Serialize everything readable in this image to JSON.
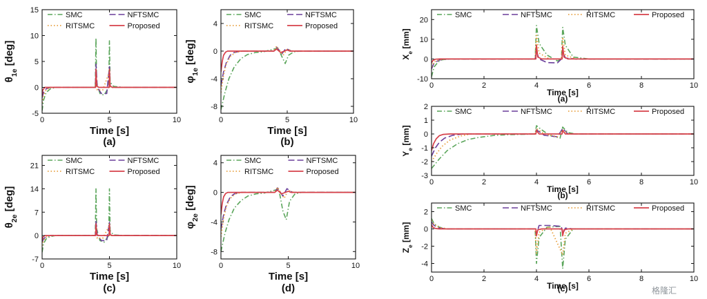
{
  "colors": {
    "SMC": "#5aa55a",
    "NFTSMC": "#6a3d9a",
    "RITSMC": "#e8a040",
    "Proposed": "#d6404a"
  },
  "watermark": "格隆汇",
  "chart_data": [
    {
      "id": "theta1",
      "type": "line",
      "ylabel": "θ1e [deg]",
      "xlabel": "Time [s]",
      "caption": "(a)",
      "xlim": [
        0,
        10
      ],
      "ylim": [
        -5,
        15
      ],
      "xticks": [
        0,
        5,
        10
      ],
      "yticks": [
        -5,
        0,
        5,
        10,
        15
      ],
      "legend": [
        "SMC",
        "NFTSMC",
        "RITSMC",
        "Proposed"
      ],
      "series": [
        {
          "name": "SMC",
          "x": [
            0,
            0.1,
            0.3,
            0.6,
            1.0,
            3.95,
            4.0,
            4.05,
            4.3,
            4.6,
            4.95,
            5.0,
            5.05,
            5.3,
            6,
            10
          ],
          "y": [
            -4.5,
            -2.5,
            -1,
            -0.3,
            0,
            0,
            9.5,
            1,
            -1.2,
            -1.5,
            0,
            9,
            1,
            0.2,
            0,
            0
          ]
        },
        {
          "name": "NFTSMC",
          "x": [
            0,
            0.1,
            0.3,
            0.6,
            3.95,
            4.0,
            4.1,
            4.4,
            4.8,
            5.0,
            5.05,
            5.2,
            5.5,
            10
          ],
          "y": [
            -2,
            -1,
            -0.3,
            0,
            0,
            4.5,
            0,
            -1.2,
            -1.2,
            4,
            0.3,
            0,
            0,
            0
          ]
        },
        {
          "name": "RITSMC",
          "x": [
            0,
            0.1,
            0.3,
            0.6,
            3.95,
            4.0,
            4.1,
            4.5,
            5.0,
            5.05,
            5.3,
            10
          ],
          "y": [
            -3,
            -1.5,
            -0.5,
            0,
            0,
            3,
            -0.5,
            -0.5,
            3,
            0,
            0,
            0
          ]
        },
        {
          "name": "Proposed",
          "x": [
            0,
            0.05,
            0.2,
            0.4,
            3.98,
            4.0,
            4.05,
            4.2,
            4.98,
            5.0,
            5.05,
            5.2,
            10
          ],
          "y": [
            -1.5,
            -0.5,
            0,
            0,
            0,
            3.5,
            0.3,
            0,
            0,
            3.5,
            0.3,
            0,
            0
          ]
        }
      ]
    },
    {
      "id": "phi1",
      "type": "line",
      "ylabel": "φ1e [deg]",
      "xlabel": "Time [s]",
      "caption": "(b)",
      "xlim": [
        0,
        10
      ],
      "ylim": [
        -9,
        6
      ],
      "xticks": [
        0,
        5,
        10
      ],
      "yticks": [
        -8,
        -4,
        0,
        4
      ],
      "legend": [
        "SMC",
        "NFTSMC",
        "RITSMC",
        "Proposed"
      ],
      "series": [
        {
          "name": "SMC",
          "x": [
            0,
            0.3,
            0.6,
            1.0,
            1.5,
            2.0,
            2.6,
            3.2,
            4.0,
            4.3,
            4.7,
            4.85,
            5.1,
            5.5,
            6,
            10
          ],
          "y": [
            -8.5,
            -6,
            -4,
            -2.3,
            -1.1,
            -0.5,
            -0.2,
            -0.1,
            0.3,
            0.4,
            -1.2,
            -1.8,
            -0.6,
            -0.1,
            0,
            0
          ]
        },
        {
          "name": "NFTSMC",
          "x": [
            0,
            0.2,
            0.4,
            0.7,
            1.0,
            1.5,
            4.0,
            4.2,
            4.6,
            4.9,
            5.3,
            6,
            10
          ],
          "y": [
            -5,
            -3,
            -1.7,
            -0.6,
            -0.2,
            0,
            0,
            0.6,
            -0.4,
            0.4,
            0,
            0,
            0
          ]
        },
        {
          "name": "RITSMC",
          "x": [
            0,
            0.2,
            0.4,
            0.7,
            1.1,
            1.6,
            4.0,
            4.2,
            4.7,
            5.0,
            5.4,
            10
          ],
          "y": [
            -6,
            -3.5,
            -1.9,
            -0.8,
            -0.2,
            0,
            0,
            0.7,
            -0.6,
            0.3,
            0,
            0
          ]
        },
        {
          "name": "Proposed",
          "x": [
            0,
            0.1,
            0.2,
            0.35,
            0.5,
            0.7,
            4.0,
            4.2,
            4.5,
            5.0,
            5.2,
            10
          ],
          "y": [
            -3,
            -1.5,
            -0.6,
            -0.15,
            0,
            0,
            0,
            0.3,
            -0.2,
            0.15,
            0,
            0
          ]
        }
      ]
    },
    {
      "id": "xe",
      "type": "line",
      "ylabel": "Xe [mm]",
      "xlabel": "Time [s]",
      "caption": "(a)",
      "xlim": [
        0,
        10
      ],
      "ylim": [
        -10,
        25
      ],
      "xticks": [
        0,
        2,
        4,
        6,
        8,
        10
      ],
      "yticks": [
        -10,
        0,
        10,
        20
      ],
      "legend": [
        "SMC",
        "NFTSMC",
        "RITSMC",
        "Proposed"
      ],
      "series": [
        {
          "name": "SMC",
          "x": [
            0,
            0.1,
            0.25,
            0.4,
            0.7,
            3.95,
            4.0,
            4.1,
            4.4,
            4.8,
            4.95,
            5.0,
            5.1,
            5.4,
            6,
            10
          ],
          "y": [
            -9,
            -4,
            -1.5,
            -0.4,
            0,
            0,
            17,
            8,
            2,
            -1,
            0,
            16,
            7,
            1,
            0,
            0
          ]
        },
        {
          "name": "NFTSMC",
          "x": [
            0,
            0.1,
            0.3,
            0.6,
            3.95,
            4.0,
            4.1,
            4.4,
            4.8,
            4.95,
            5.0,
            5.1,
            5.5,
            10
          ],
          "y": [
            -5,
            -2,
            -0.5,
            0,
            0,
            4,
            0,
            -1.8,
            -2,
            0,
            4,
            0.5,
            0,
            0
          ]
        },
        {
          "name": "RITSMC",
          "x": [
            0,
            0.1,
            0.3,
            0.6,
            3.95,
            4.0,
            4.1,
            4.5,
            4.95,
            5.0,
            5.1,
            5.5,
            10
          ],
          "y": [
            -4,
            -1.5,
            -0.3,
            0,
            0,
            12,
            3,
            0,
            0,
            11,
            2,
            0,
            0
          ]
        },
        {
          "name": "Proposed",
          "x": [
            0,
            0.05,
            0.15,
            0.3,
            3.98,
            4.0,
            4.05,
            4.2,
            4.98,
            5.0,
            5.05,
            5.2,
            10
          ],
          "y": [
            -2,
            -0.8,
            -0.1,
            0,
            0,
            7,
            1,
            0,
            0,
            6.5,
            1,
            0,
            0
          ]
        }
      ]
    },
    {
      "id": "theta2",
      "type": "line",
      "ylabel": "θ2e [deg]",
      "xlabel": "Time [s]",
      "caption": "(c)",
      "xlim": [
        0,
        10
      ],
      "ylim": [
        -7,
        24
      ],
      "xticks": [
        0,
        5,
        10
      ],
      "yticks": [
        -7,
        0,
        7,
        14,
        21
      ],
      "legend": [
        "SMC",
        "NFTSMC",
        "RITSMC",
        "Proposed"
      ],
      "series": [
        {
          "name": "SMC",
          "x": [
            0,
            0.1,
            0.3,
            0.6,
            1.0,
            3.95,
            4.0,
            4.05,
            4.3,
            4.6,
            4.95,
            5.0,
            5.05,
            5.3,
            6,
            10
          ],
          "y": [
            -5,
            -2.5,
            -1,
            -0.3,
            0,
            0,
            14,
            2,
            -1.5,
            -2,
            0,
            14,
            1.5,
            0.2,
            0,
            0
          ]
        },
        {
          "name": "NFTSMC",
          "x": [
            0,
            0.1,
            0.3,
            0.6,
            3.95,
            4.0,
            4.1,
            4.4,
            4.8,
            5.0,
            5.05,
            5.2,
            5.5,
            10
          ],
          "y": [
            -2,
            -1,
            -0.3,
            0,
            0,
            4.5,
            0,
            -1.5,
            -1.5,
            4,
            0.3,
            0,
            0,
            0
          ]
        },
        {
          "name": "RITSMC",
          "x": [
            0,
            0.1,
            0.3,
            0.6,
            3.95,
            4.0,
            4.1,
            4.5,
            5.0,
            5.05,
            5.3,
            10
          ],
          "y": [
            -3,
            -1.5,
            -0.5,
            0,
            0,
            3,
            -0.8,
            -0.8,
            3,
            0,
            0,
            0
          ]
        },
        {
          "name": "Proposed",
          "x": [
            0,
            0.05,
            0.2,
            0.4,
            3.98,
            4.0,
            4.05,
            4.2,
            4.98,
            5.0,
            5.05,
            5.2,
            10
          ],
          "y": [
            -1.5,
            -0.5,
            0,
            0,
            0,
            3.5,
            0.3,
            0,
            0,
            3.5,
            0.3,
            0,
            0
          ]
        }
      ]
    },
    {
      "id": "phi2",
      "type": "line",
      "ylabel": "φ2e [deg]",
      "xlabel": "Time [s]",
      "caption": "(d)",
      "xlim": [
        0,
        10
      ],
      "ylim": [
        -9,
        5
      ],
      "xticks": [
        0,
        5,
        10
      ],
      "yticks": [
        -8,
        -4,
        0,
        4
      ],
      "legend": [
        "SMC",
        "NFTSMC",
        "RITSMC",
        "Proposed"
      ],
      "series": [
        {
          "name": "SMC",
          "x": [
            0,
            0.3,
            0.6,
            1.0,
            1.5,
            2.0,
            2.6,
            3.2,
            4.0,
            4.3,
            4.6,
            4.85,
            5.1,
            5.5,
            6,
            10
          ],
          "y": [
            -8,
            -5.5,
            -3.7,
            -2.1,
            -1.1,
            -0.5,
            -0.2,
            -0.1,
            0.3,
            0.4,
            -2.5,
            -3.7,
            -1.2,
            -0.2,
            0,
            0
          ]
        },
        {
          "name": "NFTSMC",
          "x": [
            0,
            0.2,
            0.4,
            0.7,
            1.0,
            1.5,
            4.0,
            4.2,
            4.6,
            4.9,
            5.3,
            6,
            10
          ],
          "y": [
            -5,
            -3,
            -1.7,
            -0.6,
            -0.2,
            0,
            0,
            0.6,
            -0.5,
            0.5,
            0,
            0,
            0
          ]
        },
        {
          "name": "RITSMC",
          "x": [
            0,
            0.2,
            0.4,
            0.7,
            1.1,
            1.6,
            4.0,
            4.2,
            4.7,
            5.0,
            5.4,
            10
          ],
          "y": [
            -6,
            -3.5,
            -1.9,
            -0.8,
            -0.2,
            0,
            0,
            0.7,
            -0.8,
            0.3,
            0,
            0
          ]
        },
        {
          "name": "Proposed",
          "x": [
            0,
            0.1,
            0.2,
            0.35,
            0.5,
            0.7,
            4.0,
            4.2,
            4.5,
            5.0,
            5.2,
            10
          ],
          "y": [
            -3,
            -1.5,
            -0.6,
            -0.15,
            0,
            0,
            0,
            0.3,
            -0.2,
            0.15,
            0,
            0
          ]
        }
      ]
    },
    {
      "id": "ye",
      "type": "line",
      "ylabel": "Ye [mm]",
      "xlabel": "Time [s]",
      "caption": "(b)",
      "xlim": [
        0,
        10
      ],
      "ylim": [
        -3,
        2
      ],
      "xticks": [
        0,
        2,
        4,
        6,
        8,
        10
      ],
      "yticks": [
        -3,
        -2,
        -1,
        0,
        1,
        2
      ],
      "legend": [
        "SMC",
        "NFTSMC",
        "RITSMC",
        "Proposed"
      ],
      "series": [
        {
          "name": "SMC",
          "x": [
            0,
            0.3,
            0.6,
            1.0,
            1.4,
            1.8,
            2.4,
            3.0,
            3.95,
            4.0,
            4.2,
            4.5,
            4.9,
            5.0,
            5.2,
            5.5,
            6,
            10
          ],
          "y": [
            -2.5,
            -1.8,
            -1.2,
            -0.7,
            -0.4,
            -0.25,
            -0.1,
            -0.05,
            0,
            0.6,
            0.3,
            -0.1,
            -0.3,
            0.5,
            0.1,
            0,
            0,
            0
          ]
        },
        {
          "name": "NFTSMC",
          "x": [
            0,
            0.15,
            0.3,
            0.5,
            0.8,
            1.2,
            3.95,
            4.0,
            4.3,
            4.8,
            5.0,
            5.2,
            10
          ],
          "y": [
            -1.6,
            -1,
            -0.6,
            -0.3,
            -0.1,
            0,
            0,
            0.3,
            -0.1,
            -0.2,
            0.4,
            0,
            0
          ]
        },
        {
          "name": "RITSMC",
          "x": [
            0,
            0.2,
            0.4,
            0.7,
            1.1,
            1.5,
            3.95,
            4.0,
            4.3,
            4.8,
            5.0,
            5.2,
            10
          ],
          "y": [
            -2,
            -1.4,
            -0.9,
            -0.45,
            -0.15,
            0,
            0,
            0.4,
            0,
            -0.2,
            0.3,
            0,
            0
          ]
        },
        {
          "name": "Proposed",
          "x": [
            0,
            0.08,
            0.18,
            0.3,
            0.45,
            0.7,
            3.98,
            4.0,
            4.1,
            4.98,
            5.0,
            5.1,
            10
          ],
          "y": [
            -1.2,
            -0.7,
            -0.35,
            -0.12,
            -0.03,
            0,
            0,
            0.25,
            0,
            0,
            0.25,
            0,
            0
          ]
        }
      ]
    },
    {
      "id": "ze",
      "type": "line",
      "ylabel": "Ze [mm]",
      "xlabel": "Time [s]",
      "caption": "(c)",
      "xlim": [
        0,
        10
      ],
      "ylim": [
        -5,
        3
      ],
      "xticks": [
        0,
        2,
        4,
        6,
        8,
        10
      ],
      "yticks": [
        -4,
        -2,
        0,
        2
      ],
      "legend": [
        "SMC",
        "NFTSMC",
        "RITSMC",
        "Proposed"
      ],
      "series": [
        {
          "name": "SMC",
          "x": [
            0,
            0.1,
            0.3,
            0.6,
            3.95,
            4.0,
            4.1,
            4.4,
            4.9,
            5.0,
            5.1,
            5.4,
            6,
            10
          ],
          "y": [
            1.2,
            0.6,
            0.2,
            0,
            0,
            -4,
            -1,
            0.2,
            0.3,
            -4.6,
            -1.2,
            0,
            0,
            0
          ]
        },
        {
          "name": "NFTSMC",
          "x": [
            0,
            0.1,
            0.3,
            0.6,
            3.95,
            4.0,
            4.1,
            4.5,
            4.95,
            5.0,
            5.1,
            5.4,
            10
          ],
          "y": [
            0.8,
            0.4,
            0.1,
            0,
            0,
            -0.6,
            0.4,
            0.4,
            0.3,
            -0.6,
            0.1,
            0,
            0
          ]
        },
        {
          "name": "RITSMC",
          "x": [
            0,
            0.1,
            0.3,
            0.6,
            3.95,
            4.0,
            4.1,
            4.5,
            5.0,
            5.1,
            5.4,
            10
          ],
          "y": [
            1,
            0.5,
            0.15,
            0,
            0,
            -2.8,
            -0.4,
            0.3,
            -3,
            -0.5,
            0,
            0
          ]
        },
        {
          "name": "Proposed",
          "x": [
            0,
            0.05,
            0.15,
            0.3,
            3.98,
            4.0,
            4.05,
            4.2,
            4.98,
            5.0,
            5.05,
            5.2,
            10
          ],
          "y": [
            0.5,
            0.2,
            0.05,
            0,
            0,
            -0.8,
            -0.1,
            0,
            0,
            -0.8,
            -0.1,
            0,
            0
          ]
        }
      ]
    }
  ]
}
